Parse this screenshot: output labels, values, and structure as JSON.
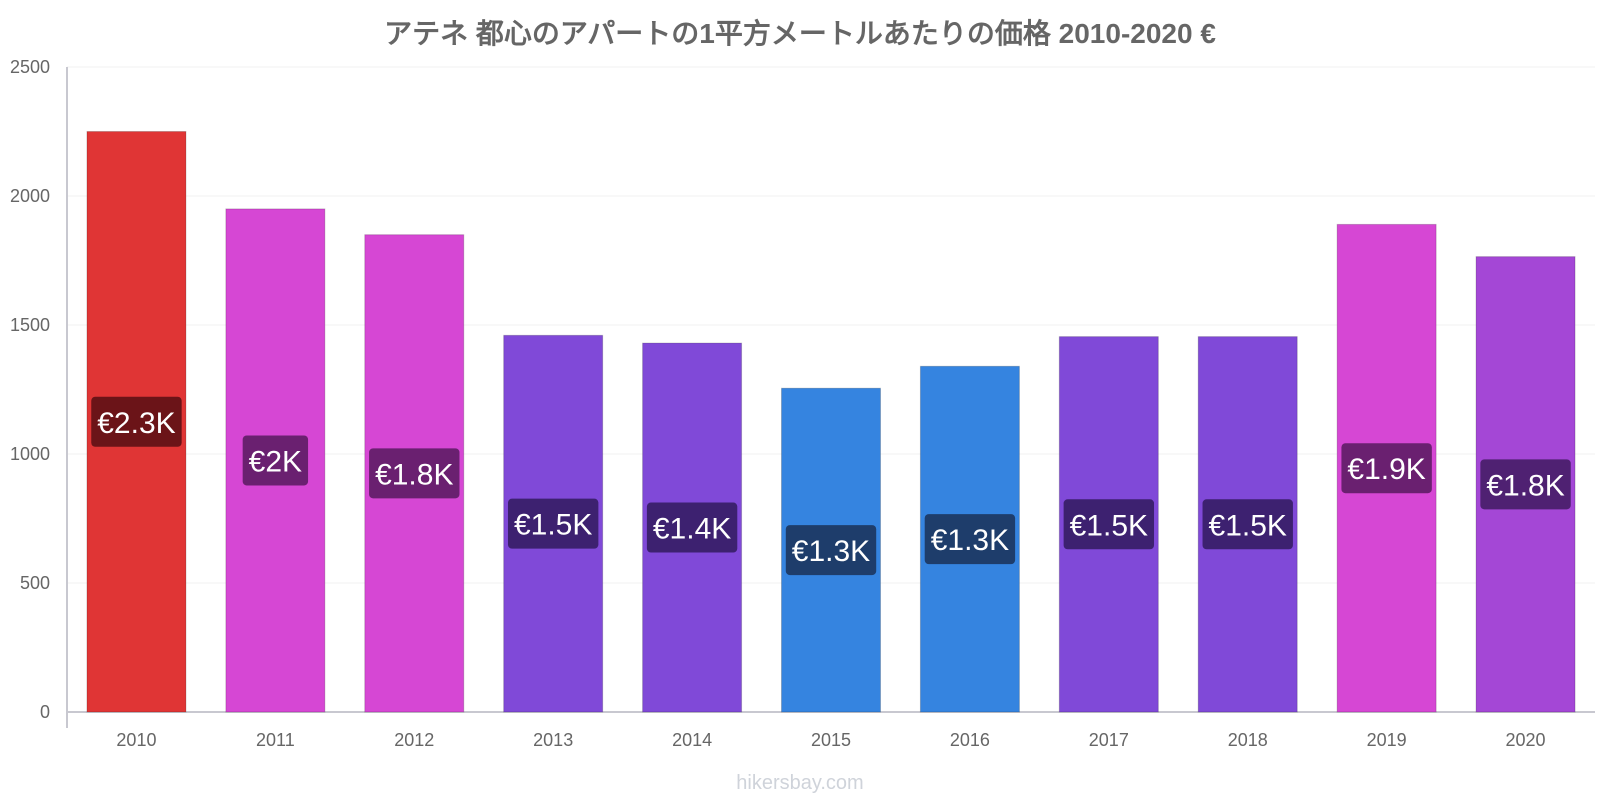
{
  "chart_data": {
    "type": "bar",
    "title": "アテネ 都心のアパートの1平方メートルあたりの価格 2010-2020 €",
    "xlabel": "",
    "ylabel": "",
    "categories": [
      "2010",
      "2011",
      "2012",
      "2013",
      "2014",
      "2015",
      "2016",
      "2017",
      "2018",
      "2019",
      "2020"
    ],
    "values": [
      2250,
      1950,
      1850,
      1460,
      1430,
      1255,
      1340,
      1455,
      1455,
      1890,
      1765
    ],
    "data_labels": [
      "€2.3K",
      "€2K",
      "€1.8K",
      "€1.5K",
      "€1.4K",
      "€1.3K",
      "€1.3K",
      "€1.5K",
      "€1.5K",
      "€1.9K",
      "€1.8K"
    ],
    "bar_colors": [
      "#e03535",
      "#d647d4",
      "#d647d4",
      "#8049d8",
      "#8049d8",
      "#3584e0",
      "#3584e0",
      "#8049d8",
      "#8049d8",
      "#d647d4",
      "#a447d6"
    ],
    "label_bg_colors": [
      "#6b1418",
      "#6a2070",
      "#6a2070",
      "#3d2170",
      "#3d2170",
      "#1e3d6b",
      "#1e3d6b",
      "#3d2170",
      "#3d2170",
      "#6a2070",
      "#4f2172"
    ],
    "yticks": [
      "0",
      "500",
      "1000",
      "1500",
      "2000",
      "2500"
    ],
    "ylim": [
      0,
      2500
    ],
    "grid": true,
    "legend": "none"
  },
  "watermark": "hikersbay.com"
}
